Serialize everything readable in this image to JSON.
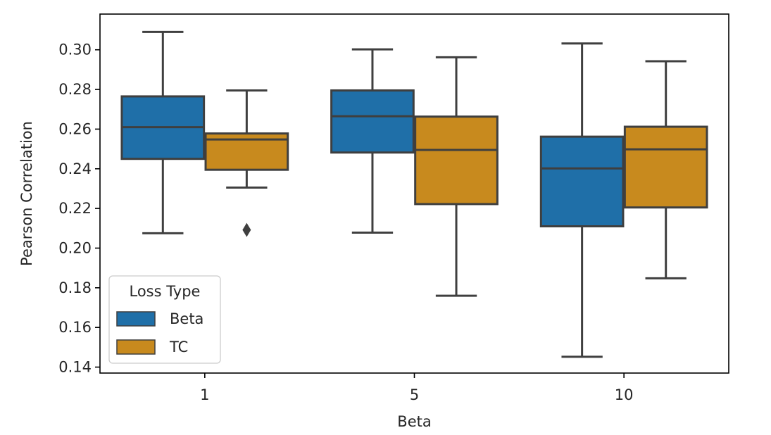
{
  "chart_data": {
    "type": "boxplot",
    "xlabel": "Beta",
    "ylabel": "Pearson Correlation",
    "categories": [
      "1",
      "5",
      "10"
    ],
    "ylim": [
      0.137,
      0.318
    ],
    "yticks": [
      "0.14",
      "0.16",
      "0.18",
      "0.20",
      "0.22",
      "0.24",
      "0.26",
      "0.28",
      "0.30"
    ],
    "grid": false,
    "legend": {
      "title": "Loss Type",
      "position": "lower-left"
    },
    "series": [
      {
        "name": "Beta",
        "color": "#1f6fa8",
        "boxes": [
          {
            "whislo": 0.2075,
            "q1": 0.245,
            "med": 0.261,
            "q3": 0.2765,
            "whishi": 0.309,
            "fliers": []
          },
          {
            "whislo": 0.2078,
            "q1": 0.2482,
            "med": 0.2665,
            "q3": 0.2795,
            "whishi": 0.3002,
            "fliers": []
          },
          {
            "whislo": 0.1452,
            "q1": 0.211,
            "med": 0.2402,
            "q3": 0.2562,
            "whishi": 0.3032,
            "fliers": []
          }
        ]
      },
      {
        "name": "TC",
        "color": "#c88a1e",
        "boxes": [
          {
            "whislo": 0.2305,
            "q1": 0.2395,
            "med": 0.2548,
            "q3": 0.2578,
            "whishi": 0.2795,
            "fliers": [
              0.2092
            ]
          },
          {
            "whislo": 0.176,
            "q1": 0.2222,
            "med": 0.2495,
            "q3": 0.2663,
            "whishi": 0.2962,
            "fliers": []
          },
          {
            "whislo": 0.1848,
            "q1": 0.2205,
            "med": 0.2498,
            "q3": 0.2612,
            "whishi": 0.2942,
            "fliers": []
          }
        ]
      }
    ]
  }
}
